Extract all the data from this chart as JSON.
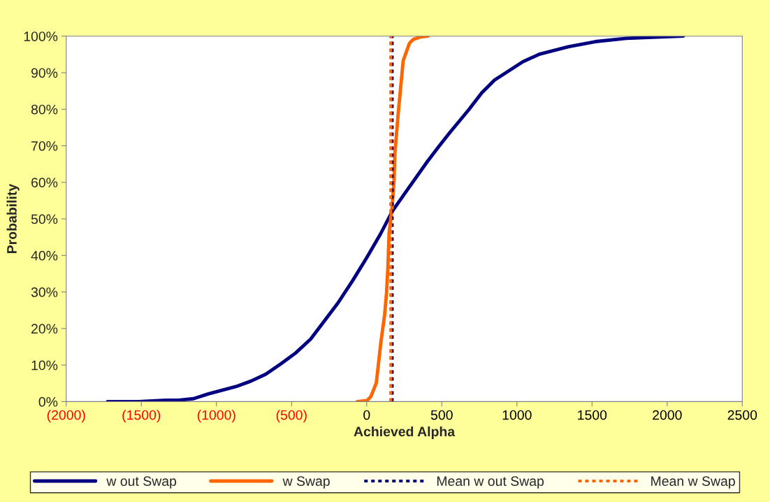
{
  "chart_data": {
    "type": "line",
    "xlabel": "Achieved Alpha",
    "ylabel": "Probability",
    "series": [
      {
        "name": "w out Swap",
        "color": "#000080",
        "x": [
          -1725,
          -1518,
          -1335,
          -1253,
          -1153,
          -1054,
          -871,
          -771,
          -672,
          -572,
          -473,
          -373,
          -191,
          -92,
          -1,
          91,
          172,
          275,
          404,
          482,
          551,
          680,
          766,
          851,
          1040,
          1152,
          1342,
          1522,
          1728,
          2107
        ],
        "values": [
          0,
          0,
          0.4,
          0.4,
          0.8,
          2.1,
          4.1,
          5.6,
          7.5,
          10.3,
          13.3,
          17.1,
          27,
          33.2,
          39.3,
          45.8,
          52.2,
          58.2,
          65.7,
          69.9,
          73.5,
          79.9,
          84.5,
          88,
          93,
          95.1,
          97.1,
          98.5,
          99.4,
          100
        ]
      },
      {
        "name": "w Swap",
        "color": "#ff6600",
        "x": [
          -63,
          3,
          28,
          64,
          81,
          94,
          119,
          132,
          141,
          149,
          169,
          182,
          188,
          210,
          243,
          285,
          310,
          359,
          409
        ],
        "values": [
          0,
          0.3,
          1.4,
          5.1,
          11.3,
          16.1,
          23.6,
          29.7,
          36.6,
          46.1,
          53,
          60.5,
          68,
          79,
          93.3,
          98.1,
          99.1,
          99.8,
          100
        ]
      }
    ],
    "ref_lines": [
      {
        "axis": "x",
        "value": 170,
        "label": "Mean w out Swap",
        "color": "#000080",
        "line_style": "dotted"
      },
      {
        "axis": "x",
        "value": 160,
        "label": "Mean w Swap",
        "color": "#ff6600",
        "line_style": "dotted"
      }
    ],
    "xlim": [
      -2000,
      2500
    ],
    "xticks": [
      {
        "value": -2000,
        "label": "(2000)"
      },
      {
        "value": -1500,
        "label": "(1500)"
      },
      {
        "value": -1000,
        "label": "(1000)"
      },
      {
        "value": -500,
        "label": "(500)"
      },
      0,
      500,
      1000,
      1500,
      2000,
      2500
    ],
    "ylim": [
      0,
      100
    ],
    "yticks": [
      {
        "value": 0,
        "label": "0%"
      },
      {
        "value": 10,
        "label": "10%"
      },
      {
        "value": 20,
        "label": "20%"
      },
      {
        "value": 30,
        "label": "30%"
      },
      {
        "value": 40,
        "label": "40%"
      },
      {
        "value": 50,
        "label": "50%"
      },
      {
        "value": 60,
        "label": "60%"
      },
      {
        "value": 70,
        "label": "70%"
      },
      {
        "value": 80,
        "label": "80%"
      },
      {
        "value": 90,
        "label": "90%"
      },
      {
        "value": 100,
        "label": "100%"
      }
    ],
    "grid": false,
    "legend": "bottom",
    "marker": "none",
    "line_style": "solid"
  }
}
